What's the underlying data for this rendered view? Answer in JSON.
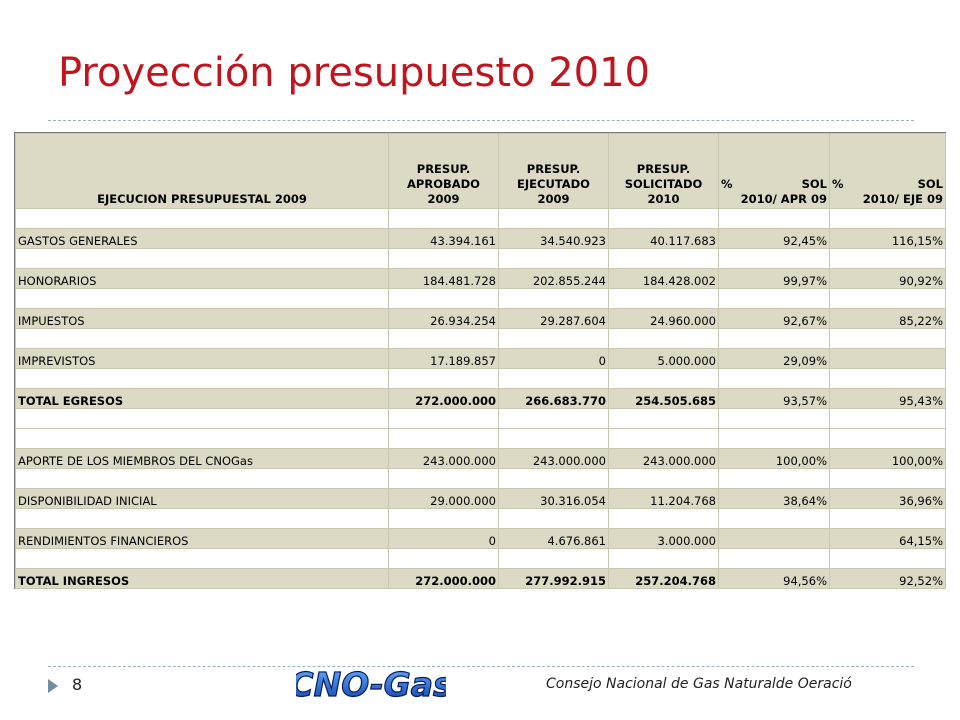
{
  "slide": {
    "title": "Proyección presupuesto 2010",
    "page_number": "8",
    "logo_text": "CNO-Gas",
    "org_name": "Consejo Nacional de Gas Naturalde Oeració"
  },
  "table": {
    "header": {
      "col0": "EJECUCION PRESUPUESTAL 2009",
      "col1": [
        "PRESUP.",
        "APROBADO",
        "2009"
      ],
      "col2": [
        "PRESUP.",
        "EJECUTADO",
        "2009"
      ],
      "col3": [
        "PRESUP.",
        "SOLICITADO",
        "2010"
      ],
      "col4": [
        "%",
        "SOL",
        "2010/ APR 09"
      ],
      "col5": [
        "%",
        "SOL",
        "2010/ EJE 09"
      ]
    },
    "rows": {
      "gastos": [
        "GASTOS GENERALES",
        "43.394.161",
        "34.540.923",
        "40.117.683",
        "92,45%",
        "116,15%"
      ],
      "honorarios": [
        "HONORARIOS",
        "184.481.728",
        "202.855.244",
        "184.428.002",
        "99,97%",
        "90,92%"
      ],
      "impuestos": [
        "IMPUESTOS",
        "26.934.254",
        "29.287.604",
        "24.960.000",
        "92,67%",
        "85,22%"
      ],
      "imprevistos": [
        "IMPREVISTOS",
        "17.189.857",
        "0",
        "5.000.000",
        "29,09%",
        ""
      ],
      "total_egresos": [
        "TOTAL EGRESOS",
        "272.000.000",
        "266.683.770",
        "254.505.685",
        "93,57%",
        "95,43%"
      ],
      "aporte": [
        "APORTE DE LOS MIEMBROS DEL CNOGas",
        "243.000.000",
        "243.000.000",
        "243.000.000",
        "100,00%",
        "100,00%"
      ],
      "disponibilidad": [
        "DISPONIBILIDAD INICIAL",
        "29.000.000",
        "30.316.054",
        "11.204.768",
        "38,64%",
        "36,96%"
      ],
      "rendimientos": [
        "RENDIMIENTOS FINANCIEROS",
        "0",
        "4.676.861",
        "3.000.000",
        "",
        "64,15%"
      ],
      "total_ingresos": [
        "TOTAL INGRESOS",
        "272.000.000",
        "277.992.915",
        "257.204.768",
        "94,56%",
        "92,52%"
      ]
    }
  }
}
